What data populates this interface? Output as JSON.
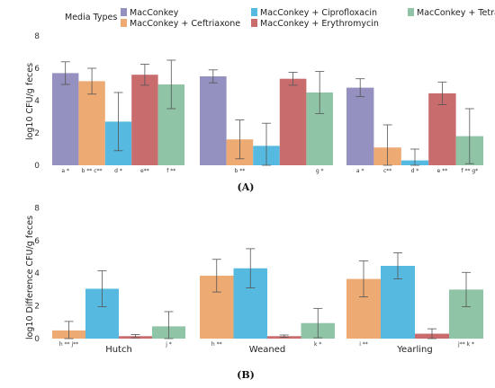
{
  "colors": {
    "MacConkey": "#9490bf",
    "MacConkey + Ceftriaxone": "#eeaa73",
    "MacConkey + Ciprofloxacin": "#55b9e0",
    "MacConkey + Erythromycin": "#c86c6e",
    "MacConkey + Tetracycline": "#90c4a6"
  },
  "legend": {
    "title": "Media Types",
    "entries": [
      "MacConkey",
      "MacConkey + Ceftriaxone",
      "MacConkey + Ciprofloxacin",
      "MacConkey + Erythromycin",
      "MacConkey + Tetracycline"
    ]
  },
  "chart_data": [
    {
      "type": "bar",
      "panel_label": "(A)",
      "ylabel": "log10 CFU/g feces",
      "ylim": [
        0,
        8
      ],
      "yticks": [
        0,
        2,
        4,
        6,
        8
      ],
      "groups": [
        {
          "label": "",
          "bars": [
            {
              "series": "MacConkey",
              "value": 5.7,
              "err": 0.7,
              "sig": "a *"
            },
            {
              "series": "MacConkey + Ceftriaxone",
              "value": 5.2,
              "err": 0.8,
              "sig": "b ** c**"
            },
            {
              "series": "MacConkey + Ciprofloxacin",
              "value": 2.7,
              "err": 1.8,
              "sig": "d *"
            },
            {
              "series": "MacConkey + Erythromycin",
              "value": 5.6,
              "err": 0.65,
              "sig": "e**"
            },
            {
              "series": "MacConkey + Tetracycline",
              "value": 5.0,
              "err": 1.5,
              "sig": "f **"
            }
          ]
        },
        {
          "label": "",
          "bars": [
            {
              "series": "MacConkey",
              "value": 5.5,
              "err": 0.4,
              "sig": ""
            },
            {
              "series": "MacConkey + Ceftriaxone",
              "value": 1.6,
              "err": 1.2,
              "sig": "b **"
            },
            {
              "series": "MacConkey + Ciprofloxacin",
              "value": 1.2,
              "err": 1.4,
              "sig": ""
            },
            {
              "series": "MacConkey + Erythromycin",
              "value": 5.35,
              "err": 0.4,
              "sig": ""
            },
            {
              "series": "MacConkey + Tetracycline",
              "value": 4.5,
              "err": 1.3,
              "sig": "g *"
            }
          ]
        },
        {
          "label": "",
          "bars": [
            {
              "series": "MacConkey",
              "value": 4.8,
              "err": 0.55,
              "sig": "a *"
            },
            {
              "series": "MacConkey + Ceftriaxone",
              "value": 1.1,
              "err": 1.4,
              "sig": "c**"
            },
            {
              "series": "MacConkey + Ciprofloxacin",
              "value": 0.3,
              "err": 0.7,
              "sig": "d *"
            },
            {
              "series": "MacConkey + Erythromycin",
              "value": 4.45,
              "err": 0.7,
              "sig": "e **"
            },
            {
              "series": "MacConkey + Tetracycline",
              "value": 1.8,
              "err": 1.7,
              "sig": "f ** g*"
            }
          ]
        }
      ]
    },
    {
      "type": "bar",
      "panel_label": "(B)",
      "ylabel": "log10 Difference CFU/g feces",
      "ylim": [
        0,
        8
      ],
      "yticks": [
        0,
        2,
        4,
        6,
        8
      ],
      "groups": [
        {
          "label": "Hutch",
          "bars": [
            {
              "series": "MacConkey + Ceftriaxone",
              "value": 0.5,
              "err": 0.55,
              "sig": "h ** j**"
            },
            {
              "series": "MacConkey + Ciprofloxacin",
              "value": 3.05,
              "err": 1.1,
              "sig": ""
            },
            {
              "series": "MacConkey + Erythromycin",
              "value": 0.15,
              "err": 0.1,
              "sig": ""
            },
            {
              "series": "MacConkey + Tetracycline",
              "value": 0.75,
              "err": 0.9,
              "sig": "j *"
            }
          ]
        },
        {
          "label": "Weaned",
          "bars": [
            {
              "series": "MacConkey + Ceftriaxone",
              "value": 3.85,
              "err": 1.0,
              "sig": "h **"
            },
            {
              "series": "MacConkey + Ciprofloxacin",
              "value": 4.3,
              "err": 1.2,
              "sig": ""
            },
            {
              "series": "MacConkey + Erythromycin",
              "value": 0.15,
              "err": 0.07,
              "sig": ""
            },
            {
              "series": "MacConkey + Tetracycline",
              "value": 0.95,
              "err": 0.9,
              "sig": "k *"
            }
          ]
        },
        {
          "label": "Yearling",
          "bars": [
            {
              "series": "MacConkey + Ceftriaxone",
              "value": 3.65,
              "err": 1.1,
              "sig": "i **"
            },
            {
              "series": "MacConkey + Ciprofloxacin",
              "value": 4.45,
              "err": 0.8,
              "sig": ""
            },
            {
              "series": "MacConkey + Erythromycin",
              "value": 0.3,
              "err": 0.3,
              "sig": ""
            },
            {
              "series": "MacConkey + Tetracycline",
              "value": 3.0,
              "err": 1.05,
              "sig": "j** k *"
            }
          ]
        }
      ]
    }
  ]
}
